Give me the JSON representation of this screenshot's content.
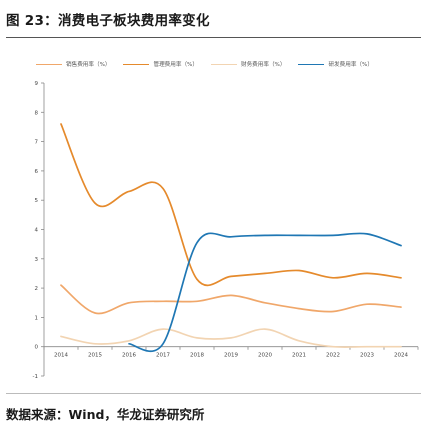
{
  "figure": {
    "title": "图 23：消费电子板块费用率变化",
    "source": "数据来源：Wind，华龙证券研究所"
  },
  "chart_data": {
    "type": "line",
    "x": [
      "2014",
      "2015",
      "2016",
      "2017",
      "2018",
      "2019",
      "2020",
      "2021",
      "2022",
      "2023",
      "2024"
    ],
    "ylim": [
      -1,
      9
    ],
    "yticks": [
      -1,
      0,
      1,
      2,
      3,
      4,
      5,
      6,
      7,
      8,
      9
    ],
    "grid": false,
    "legend_position": "top",
    "series": [
      {
        "name": "销售费用率（%）",
        "color": "#f0a76a",
        "values": [
          2.1,
          1.15,
          1.5,
          1.55,
          1.55,
          1.75,
          1.5,
          1.3,
          1.2,
          1.45,
          1.35
        ]
      },
      {
        "name": "管理费用率（%）",
        "color": "#e58a2c",
        "values": [
          7.6,
          4.9,
          5.3,
          5.4,
          2.3,
          2.4,
          2.5,
          2.6,
          2.35,
          2.5,
          2.35
        ]
      },
      {
        "name": "财务费用率（%）",
        "color": "#f2d4b2",
        "values": [
          0.35,
          0.1,
          0.2,
          0.6,
          0.3,
          0.3,
          0.6,
          0.2,
          0.0,
          0.0,
          0.0
        ]
      },
      {
        "name": "研发费用率（%）",
        "color": "#1f77b4",
        "values": [
          null,
          null,
          0.1,
          0.1,
          3.55,
          3.75,
          3.8,
          3.8,
          3.8,
          3.85,
          3.45
        ]
      }
    ]
  }
}
